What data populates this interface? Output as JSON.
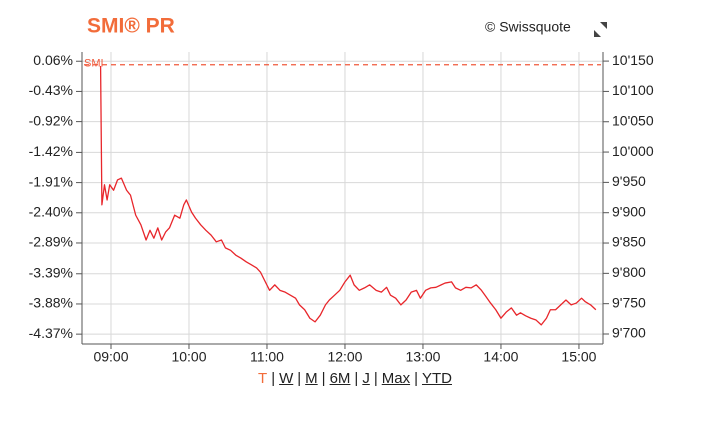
{
  "chart_data": {
    "type": "line",
    "title": "SMI® PR",
    "source": "© Swissquote",
    "color": "#e8262b",
    "grid": true,
    "x": [
      532,
      533,
      535,
      537,
      539,
      542,
      545,
      548,
      552,
      555,
      559,
      563,
      567,
      570,
      573,
      576,
      579,
      582,
      585,
      589,
      593,
      596,
      598,
      602,
      605,
      609,
      613,
      617,
      621,
      625,
      628,
      632,
      636,
      640,
      644,
      648,
      652,
      655,
      658,
      662,
      666,
      670,
      674,
      678,
      682,
      685,
      689,
      693,
      697,
      701,
      705,
      708,
      712,
      716,
      720,
      724,
      727,
      731,
      735,
      739,
      744,
      748,
      752,
      755,
      759,
      763,
      767,
      771,
      775,
      778,
      782,
      786,
      790,
      794,
      797,
      802,
      805,
      809,
      813,
      817,
      821,
      825,
      828,
      832,
      836,
      840,
      844,
      848,
      852,
      855,
      859,
      863,
      867,
      871,
      875,
      878,
      882,
      886,
      890,
      894,
      898,
      902,
      905,
      909,
      913
    ],
    "series": [
      {
        "axis": "y2",
        "values": [
          10142,
          9913,
          9946,
          9921,
          9946,
          9937,
          9954,
          9957,
          9937,
          9929,
          9896,
          9880,
          9855,
          9871,
          9858,
          9875,
          9855,
          9868,
          9875,
          9896,
          9891,
          9913,
          9921,
          9901,
          9891,
          9880,
          9871,
          9863,
          9852,
          9855,
          9842,
          9838,
          9830,
          9825,
          9819,
          9814,
          9809,
          9802,
          9789,
          9772,
          9781,
          9772,
          9769,
          9764,
          9759,
          9748,
          9740,
          9726,
          9720,
          9731,
          9748,
          9756,
          9764,
          9772,
          9786,
          9797,
          9781,
          9772,
          9776,
          9781,
          9772,
          9769,
          9777,
          9764,
          9759,
          9748,
          9756,
          9769,
          9772,
          9759,
          9772,
          9776,
          9777,
          9781,
          9784,
          9786,
          9776,
          9772,
          9777,
          9776,
          9781,
          9772,
          9763,
          9751,
          9740,
          9726,
          9736,
          9743,
          9731,
          9735,
          9730,
          9726,
          9723,
          9715,
          9726,
          9740,
          9740,
          9748,
          9756,
          9748,
          9751,
          9759,
          9753,
          9748,
          9740
        ]
      }
    ],
    "reference_line": {
      "label": "SMI",
      "value": 10144,
      "color": "#f05a3c"
    },
    "xlim": [
      517.7,
      918.5
    ],
    "xticks": [
      {
        "value": 540,
        "label": "09:00"
      },
      {
        "value": 600,
        "label": "10:00"
      },
      {
        "value": 660,
        "label": "11:00"
      },
      {
        "value": 720,
        "label": "12:00"
      },
      {
        "value": 780,
        "label": "13:00"
      },
      {
        "value": 840,
        "label": "14:00"
      },
      {
        "value": 900,
        "label": "15:00"
      }
    ],
    "ylim": [
      -4.53,
      0.21
    ],
    "yticks": [
      {
        "value": 0.06,
        "label": "0.06%"
      },
      {
        "value": -0.43,
        "label": "-0.43%"
      },
      {
        "value": -0.92,
        "label": "-0.92%"
      },
      {
        "value": -1.42,
        "label": "-1.42%"
      },
      {
        "value": -1.91,
        "label": "-1.91%"
      },
      {
        "value": -2.4,
        "label": "-2.40%"
      },
      {
        "value": -2.89,
        "label": "-2.89%"
      },
      {
        "value": -3.39,
        "label": "-3.39%"
      },
      {
        "value": -3.88,
        "label": "-3.88%"
      },
      {
        "value": -4.37,
        "label": "-4.37%"
      }
    ],
    "y2lim": [
      9683.5,
      10165
    ],
    "y2ticks": [
      {
        "value": 10150,
        "label": "10'150"
      },
      {
        "value": 10100,
        "label": "10'100"
      },
      {
        "value": 10050,
        "label": "10'050"
      },
      {
        "value": 10000,
        "label": "10'000"
      },
      {
        "value": 9950,
        "label": "9'950"
      },
      {
        "value": 9900,
        "label": "9'900"
      },
      {
        "value": 9850,
        "label": "9'850"
      },
      {
        "value": 9800,
        "label": "9'800"
      },
      {
        "value": 9750,
        "label": "9'750"
      },
      {
        "value": 9700,
        "label": "9'700"
      }
    ],
    "range_selector": {
      "options": [
        "T",
        "W",
        "M",
        "6M",
        "J",
        "Max",
        "YTD"
      ],
      "active": "T",
      "separator": "|"
    }
  }
}
